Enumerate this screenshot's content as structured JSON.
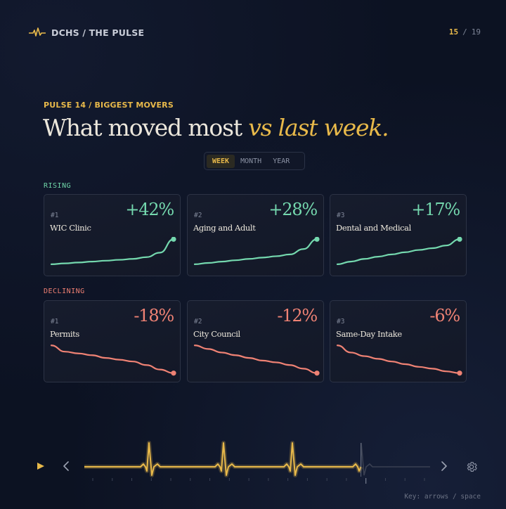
{
  "header": {
    "brand": "DCHS / THE PULSE",
    "logo_icon": "pulse-icon",
    "page_current": "15",
    "page_separator": "/",
    "page_total": "19"
  },
  "hero": {
    "eyebrow": "PULSE 14 / BIGGEST MOVERS",
    "title_plain": "What moved most ",
    "title_accent": "vs last week."
  },
  "range_toggle": {
    "options": [
      "WEEK",
      "MONTH",
      "YEAR"
    ],
    "selected": "WEEK"
  },
  "rising": {
    "label": "RISING",
    "color": "#74d8ae",
    "cards": [
      {
        "rank": "#1",
        "name": "WIC Clinic",
        "change": "+42%",
        "trend": [
          8,
          10,
          12,
          14,
          16,
          18,
          20,
          24,
          34,
          64
        ]
      },
      {
        "rank": "#2",
        "name": "Aging and Adult",
        "change": "+28%",
        "trend": [
          8,
          11,
          14,
          17,
          20,
          23,
          26,
          30,
          42,
          64
        ]
      },
      {
        "rank": "#3",
        "name": "Dental and Medical",
        "change": "+17%",
        "trend": [
          8,
          14,
          20,
          25,
          30,
          35,
          40,
          44,
          50,
          64
        ]
      }
    ]
  },
  "declining": {
    "label": "DECLINING",
    "color": "#ef8274",
    "cards": [
      {
        "rank": "#1",
        "name": "Permits",
        "change": "-18%",
        "trend": [
          64,
          50,
          46,
          42,
          36,
          32,
          28,
          20,
          10,
          2
        ]
      },
      {
        "rank": "#2",
        "name": "City Council",
        "change": "-12%",
        "trend": [
          64,
          56,
          48,
          42,
          36,
          30,
          26,
          20,
          12,
          2
        ]
      },
      {
        "rank": "#3",
        "name": "Same-Day Intake",
        "change": "-6%",
        "trend": [
          64,
          48,
          40,
          34,
          28,
          22,
          16,
          12,
          6,
          2
        ]
      }
    ]
  },
  "player": {
    "play_icon": "play-icon",
    "prev_icon": "chevron-left-icon",
    "next_icon": "chevron-right-icon",
    "settings_icon": "gear-icon",
    "progress": 0.8,
    "played_color": "#e8b94a",
    "unplayed_color": "#3a4052"
  },
  "key_hint": "Key: arrows / space"
}
